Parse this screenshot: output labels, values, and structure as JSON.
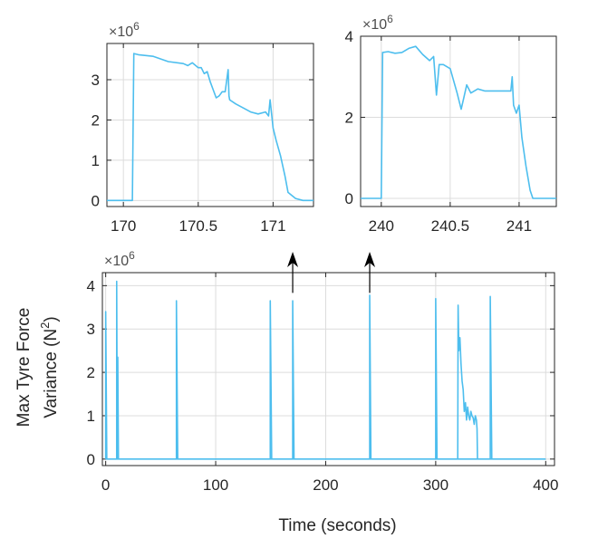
{
  "colors": {
    "series": "#4dbeee",
    "axis": "#262626",
    "grid": "#dcdcdc",
    "arrow": "#000000"
  },
  "chart_data": [
    {
      "id": "zoom1",
      "type": "line",
      "title": "",
      "xlabel": "",
      "ylabel": "",
      "exponent_label": "×10",
      "exponent_power": "6",
      "xlim": [
        169.89,
        171.27
      ],
      "ylim": [
        -0.15,
        3.9
      ],
      "xticks": [
        170,
        170.5,
        171
      ],
      "xtick_labels": [
        "170",
        "170.5",
        "171"
      ],
      "yticks": [
        0,
        1,
        2,
        3
      ],
      "ytick_labels": [
        "0",
        "1",
        "2",
        "3"
      ],
      "grid": true,
      "series": [
        {
          "name": "Max tyre force variance",
          "x": [
            169.89,
            170.06,
            170.07,
            170.1,
            170.2,
            170.3,
            170.4,
            170.43,
            170.46,
            170.5,
            170.52,
            170.54,
            170.56,
            170.58,
            170.6,
            170.62,
            170.64,
            170.66,
            170.68,
            170.7,
            170.705,
            170.71,
            170.75,
            170.8,
            170.85,
            170.9,
            170.95,
            170.97,
            170.98,
            171.0,
            171.02,
            171.05,
            171.08,
            171.1,
            171.15,
            171.2,
            171.27
          ],
          "y": [
            0.0,
            0.0,
            3.65,
            3.62,
            3.58,
            3.45,
            3.4,
            3.35,
            3.42,
            3.3,
            3.3,
            3.15,
            3.2,
            2.95,
            2.75,
            2.55,
            2.6,
            2.7,
            2.7,
            3.25,
            2.6,
            2.5,
            2.4,
            2.3,
            2.2,
            2.15,
            2.2,
            2.1,
            2.5,
            1.8,
            1.5,
            1.1,
            0.6,
            0.2,
            0.05,
            0.0,
            0.0
          ]
        }
      ]
    },
    {
      "id": "zoom2",
      "type": "line",
      "title": "",
      "xlabel": "",
      "ylabel": "",
      "exponent_label": "×10",
      "exponent_power": "6",
      "xlim": [
        239.85,
        241.27
      ],
      "ylim": [
        -0.2,
        4.0
      ],
      "xticks": [
        240,
        240.5,
        241
      ],
      "xtick_labels": [
        "240",
        "240.5",
        "241"
      ],
      "yticks": [
        0,
        2,
        4
      ],
      "ytick_labels": [
        "0",
        "2",
        "4"
      ],
      "grid": true,
      "series": [
        {
          "name": "Max tyre force variance",
          "x": [
            239.85,
            240.0,
            240.01,
            240.05,
            240.1,
            240.15,
            240.2,
            240.25,
            240.3,
            240.35,
            240.38,
            240.4,
            240.42,
            240.45,
            240.5,
            240.55,
            240.58,
            240.6,
            240.62,
            240.65,
            240.7,
            240.75,
            240.8,
            240.85,
            240.9,
            240.94,
            240.95,
            240.96,
            240.98,
            241.0,
            241.02,
            241.05,
            241.08,
            241.1,
            241.15,
            241.27
          ],
          "y": [
            0.0,
            0.0,
            3.6,
            3.62,
            3.58,
            3.6,
            3.7,
            3.75,
            3.55,
            3.4,
            3.5,
            2.55,
            3.3,
            3.3,
            3.2,
            2.6,
            2.2,
            2.5,
            2.8,
            2.6,
            2.7,
            2.65,
            2.65,
            2.65,
            2.65,
            2.65,
            3.0,
            2.3,
            2.1,
            2.3,
            1.5,
            0.8,
            0.2,
            0.0,
            0.0,
            0.0
          ]
        }
      ]
    },
    {
      "id": "main",
      "type": "line",
      "title": "",
      "xlabel": "Time (seconds)",
      "ylabel_lines": [
        "Max Tyre Force",
        "Variance (N"
      ],
      "ylabel_sup": "2",
      "ylabel_close": ")",
      "exponent_label": "×10",
      "exponent_power": "6",
      "xlim": [
        -3,
        408
      ],
      "ylim": [
        -0.15,
        4.3
      ],
      "xticks": [
        0,
        100,
        200,
        300,
        400
      ],
      "xtick_labels": [
        "0",
        "100",
        "200",
        "300",
        "400"
      ],
      "yticks": [
        0,
        1,
        2,
        3,
        4
      ],
      "ytick_labels": [
        "0",
        "1",
        "2",
        "3",
        "4"
      ],
      "grid": true,
      "spikes": [
        {
          "x0": 0.0,
          "x1": 1.0,
          "peak": 3.4
        },
        {
          "x0": 10.0,
          "x1": 10.6,
          "peak": 4.1
        },
        {
          "x0": 11.0,
          "x1": 11.6,
          "peak": 2.35
        },
        {
          "x0": 64.3,
          "x1": 65.5,
          "peak": 3.65
        },
        {
          "x0": 149.6,
          "x1": 150.9,
          "peak": 3.65
        },
        {
          "x0": 170.0,
          "x1": 171.2,
          "peak": 3.65
        },
        {
          "x0": 240.0,
          "x1": 241.1,
          "peak": 3.78
        },
        {
          "x0": 300.0,
          "x1": 301.2,
          "peak": 3.7
        },
        {
          "x0": 349.6,
          "x1": 351.0,
          "peak": 3.75
        }
      ],
      "series": [
        {
          "name": "Max tyre force variance",
          "x": [
            320.0,
            320.4,
            321,
            322,
            323,
            324,
            325,
            326,
            327,
            328,
            329,
            330,
            331,
            332,
            333,
            334,
            335,
            336,
            337,
            337.6,
            338
          ],
          "y": [
            0.0,
            3.55,
            2.5,
            2.8,
            2.2,
            1.8,
            1.6,
            1.1,
            1.3,
            0.9,
            1.2,
            1.0,
            0.9,
            1.1,
            1.0,
            0.95,
            0.8,
            1.0,
            0.9,
            0.7,
            0.0
          ]
        }
      ],
      "arrows": [
        {
          "x": 170
        },
        {
          "x": 240
        }
      ]
    }
  ]
}
